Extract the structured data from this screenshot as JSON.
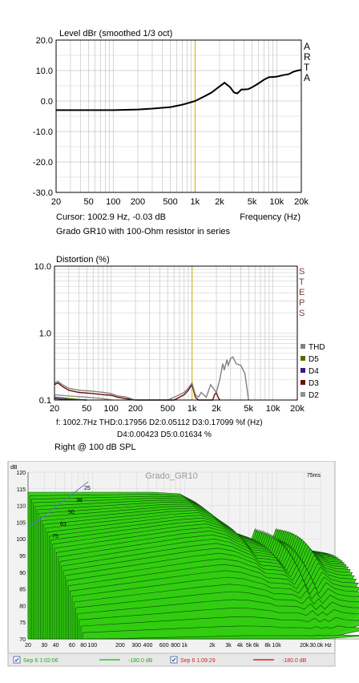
{
  "chart_data": [
    {
      "type": "line",
      "title": "Level dBr (smoothed 1/3 oct)",
      "ylabel": "Level dBr",
      "xlabel": "Frequency (Hz)",
      "xscale": "log",
      "xlim": [
        20,
        20000
      ],
      "ylim": [
        -30,
        20
      ],
      "xticks": [
        20,
        50,
        100,
        200,
        500,
        1000,
        2000,
        5000,
        10000,
        20000
      ],
      "xtick_labels": [
        "20",
        "50",
        "100",
        "200",
        "500",
        "1k",
        "2k",
        "5k",
        "10k",
        "20k"
      ],
      "yticks": [
        -30,
        -20,
        -10,
        0,
        10,
        20
      ],
      "ytick_labels": [
        "-30.0",
        "-20.0",
        "-10.0",
        "0.0",
        "10.0",
        "20.0"
      ],
      "grid": true,
      "brand": [
        "A",
        "R",
        "T",
        "A"
      ],
      "cursor_text": "Cursor: 1002.9 Hz, -0.03 dB",
      "caption": "Grado GR10 with 100-Ohm resistor in series",
      "cursor_freq": 1002.9,
      "cursor_color": "#c8b400",
      "line_color": "#000000",
      "x": [
        20,
        50,
        100,
        200,
        300,
        500,
        700,
        1000,
        1300,
        1600,
        2000,
        2300,
        2700,
        3000,
        3300,
        3700,
        4000,
        4500,
        5000,
        6000,
        7000,
        8000,
        9000,
        10000,
        12000,
        14000,
        16000,
        18000,
        20000
      ],
      "y": [
        -3.0,
        -3.0,
        -3.0,
        -2.8,
        -2.5,
        -2.0,
        -1.2,
        -0.03,
        1.5,
        2.8,
        4.8,
        6.0,
        4.5,
        2.8,
        2.5,
        3.8,
        3.8,
        3.9,
        4.5,
        5.8,
        7.0,
        7.8,
        7.9,
        8.0,
        8.5,
        8.8,
        9.6,
        10.0,
        10.2
      ]
    },
    {
      "type": "line",
      "title": "Distortion (%)",
      "ylabel": "Distortion (%)",
      "xscale": "log",
      "yscale": "log",
      "xlim": [
        20,
        20000
      ],
      "ylim": [
        0.1,
        10
      ],
      "xticks": [
        20,
        50,
        100,
        200,
        500,
        1000,
        2000,
        5000,
        10000,
        20000
      ],
      "xtick_labels": [
        "20",
        "50",
        "100",
        "200",
        "500",
        "1k",
        "2k",
        "5k",
        "10k",
        "20k"
      ],
      "yticks": [
        0.1,
        1,
        10
      ],
      "ytick_labels": [
        "0.1",
        "1.0",
        "10.0"
      ],
      "grid": true,
      "brand": [
        "S",
        "T",
        "E",
        "P",
        "S"
      ],
      "legend_position": "right",
      "readout": {
        "line1": "f: 1002.7Hz      THD:0.17956  D2:0.05112  D3:0.17099 %f (Hz)",
        "line2": "D4:0.00423  D5:0.01634   %"
      },
      "caption": "Right @ 100 dB SPL",
      "cursor_freq": 1002.7,
      "cursor_color": "#c8b400",
      "series": [
        {
          "name": "THD",
          "color": "#808080",
          "x": [
            20,
            22,
            25,
            30,
            40,
            60,
            80,
            100,
            120,
            150,
            200,
            500,
            600,
            700,
            800,
            900,
            1000,
            1100,
            1200,
            1300,
            1500,
            1700,
            2000,
            2200,
            2400,
            2500,
            2700,
            2800,
            3000,
            3200,
            3500,
            4000,
            4500,
            5000
          ],
          "y": [
            0.18,
            0.19,
            0.17,
            0.15,
            0.14,
            0.135,
            0.13,
            0.125,
            0.115,
            0.112,
            0.1,
            0.1,
            0.11,
            0.12,
            0.13,
            0.15,
            0.18,
            0.12,
            0.11,
            0.13,
            0.11,
            0.17,
            0.13,
            0.2,
            0.35,
            0.28,
            0.4,
            0.33,
            0.42,
            0.44,
            0.35,
            0.33,
            0.25,
            0.1
          ]
        },
        {
          "name": "D5",
          "color": "#556b00",
          "x": [
            20,
            25,
            30,
            40,
            50
          ],
          "y": [
            0.11,
            0.108,
            0.105,
            0.102,
            0.1
          ]
        },
        {
          "name": "D4",
          "color": "#3b1a80",
          "x": [
            20,
            25,
            30,
            40,
            50
          ],
          "y": [
            0.105,
            0.103,
            0.102,
            0.101,
            0.1
          ]
        },
        {
          "name": "D3",
          "color": "#6b0d0d",
          "x": [
            20,
            22,
            25,
            30,
            40,
            60,
            80,
            100,
            120,
            150,
            200,
            600,
            700,
            800,
            900,
            1000,
            1100,
            1200,
            1800,
            1900,
            2000,
            2100,
            2200
          ],
          "y": [
            0.17,
            0.18,
            0.16,
            0.14,
            0.13,
            0.125,
            0.12,
            0.118,
            0.11,
            0.105,
            0.1,
            0.1,
            0.11,
            0.12,
            0.14,
            0.17,
            0.11,
            0.1,
            0.1,
            0.12,
            0.13,
            0.11,
            0.1
          ]
        },
        {
          "name": "D2",
          "color": "#909090",
          "x": [
            20,
            30,
            50,
            80,
            100
          ],
          "y": [
            0.12,
            0.115,
            0.11,
            0.105,
            0.1
          ]
        }
      ]
    },
    {
      "type": "area",
      "subtype": "waterfall",
      "title": "Grado_GR10",
      "ylabel": "dB",
      "xscale": "log",
      "xlim": [
        20,
        30000
      ],
      "ylim": [
        70,
        120
      ],
      "xtick_labels": [
        "20",
        "30",
        "40",
        "60",
        "80",
        "100",
        "200",
        "300",
        "400",
        "600",
        "800",
        "1k",
        "2k",
        "3k",
        "4k",
        "5k",
        "6k",
        "8k",
        "10k",
        "20k",
        "30.0k Hz"
      ],
      "xticks": [
        20,
        30,
        40,
        60,
        80,
        100,
        200,
        300,
        400,
        600,
        800,
        1000,
        2000,
        3000,
        4000,
        5000,
        6000,
        8000,
        10000,
        20000,
        30000
      ],
      "yticks": [
        70,
        75,
        80,
        85,
        90,
        95,
        100,
        105,
        110,
        115,
        120
      ],
      "ytick_labels": [
        "70",
        "75",
        "80",
        "85",
        "90",
        "95",
        "100",
        "105",
        "110",
        "115",
        "120"
      ],
      "depth_labels": [
        "25",
        "38",
        "50",
        "63",
        "75"
      ],
      "time_label": "75ms",
      "fill_color": "#33cc11",
      "spectrum_x": [
        20,
        50,
        100,
        200,
        500,
        1000,
        1500,
        2000,
        2500,
        3000,
        4000,
        5000,
        6000,
        7000,
        8000,
        9000,
        10000,
        12000,
        15000,
        20000,
        30000
      ],
      "spectrum_y": [
        114,
        114,
        114,
        114,
        114,
        113.5,
        111,
        108,
        106,
        103,
        102,
        101,
        98,
        103,
        97,
        101,
        97,
        103,
        99,
        97,
        96
      ],
      "legend": [
        {
          "label": "Sep 6 1:02:06",
          "value": "-180.0 dB",
          "color": "#22cc22",
          "checked": true
        },
        {
          "label": "Sep 6 1:09:29",
          "value": "-180.0 dB",
          "color": "#dd2222",
          "checked": true
        }
      ]
    }
  ]
}
